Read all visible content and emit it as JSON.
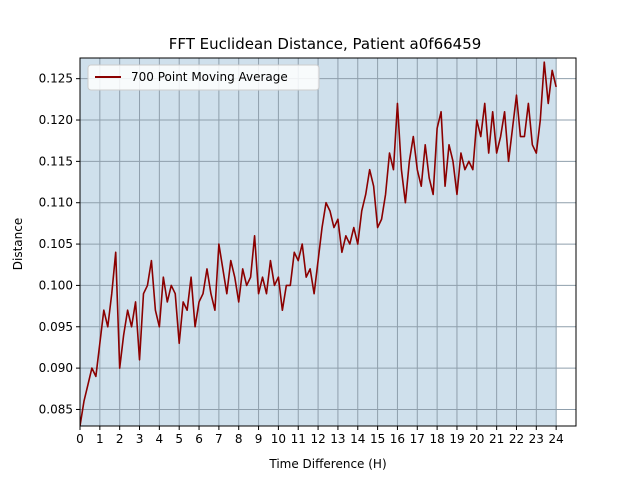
{
  "chart_data": {
    "type": "line",
    "title": "FFT Euclidean Distance, Patient a0f66459",
    "xlabel": "Time Difference (H)",
    "ylabel": "Distance",
    "xlim": [
      0,
      25
    ],
    "ylim": [
      0.083,
      0.1275
    ],
    "shaded_region": [
      0,
      24
    ],
    "x_ticks": [
      0,
      1,
      2,
      3,
      4,
      5,
      6,
      7,
      8,
      9,
      10,
      11,
      12,
      13,
      14,
      15,
      16,
      17,
      18,
      19,
      20,
      21,
      22,
      23,
      24
    ],
    "x_tick_labels": [
      "0",
      "1",
      "2",
      "3",
      "4",
      "5",
      "6",
      "7",
      "8",
      "9",
      "10",
      "11",
      "12",
      "13",
      "14",
      "15",
      "16",
      "17",
      "18",
      "19",
      "20",
      "21",
      "22",
      "23",
      "24"
    ],
    "y_ticks": [
      0.085,
      0.09,
      0.095,
      0.1,
      0.105,
      0.11,
      0.115,
      0.12,
      0.125
    ],
    "y_tick_labels": [
      "0.085",
      "0.090",
      "0.095",
      "0.100",
      "0.105",
      "0.110",
      "0.115",
      "0.120",
      "0.125"
    ],
    "grid": true,
    "legend_position": "top-left",
    "colors": {
      "line": "#8b0000",
      "fill": "#cfe0ec",
      "grid": "#8f9fac"
    },
    "series": [
      {
        "name": "700 Point Moving Average",
        "x": [
          0,
          0.2,
          0.4,
          0.6,
          0.8,
          1.0,
          1.2,
          1.4,
          1.6,
          1.8,
          2.0,
          2.2,
          2.4,
          2.6,
          2.8,
          3.0,
          3.2,
          3.4,
          3.6,
          3.8,
          4.0,
          4.2,
          4.4,
          4.6,
          4.8,
          5.0,
          5.2,
          5.4,
          5.6,
          5.8,
          6.0,
          6.2,
          6.4,
          6.6,
          6.8,
          7.0,
          7.2,
          7.4,
          7.6,
          7.8,
          8.0,
          8.2,
          8.4,
          8.6,
          8.8,
          9.0,
          9.2,
          9.4,
          9.6,
          9.8,
          10.0,
          10.2,
          10.4,
          10.6,
          10.8,
          11.0,
          11.2,
          11.4,
          11.6,
          11.8,
          12.0,
          12.2,
          12.4,
          12.6,
          12.8,
          13.0,
          13.2,
          13.4,
          13.6,
          13.8,
          14.0,
          14.2,
          14.4,
          14.6,
          14.8,
          15.0,
          15.2,
          15.4,
          15.6,
          15.8,
          16.0,
          16.2,
          16.4,
          16.6,
          16.8,
          17.0,
          17.2,
          17.4,
          17.6,
          17.8,
          18.0,
          18.2,
          18.4,
          18.6,
          18.8,
          19.0,
          19.2,
          19.4,
          19.6,
          19.8,
          20.0,
          20.2,
          20.4,
          20.6,
          20.8,
          21.0,
          21.2,
          21.4,
          21.6,
          21.8,
          22.0,
          22.2,
          22.4,
          22.6,
          22.8,
          23.0,
          23.2,
          23.4,
          23.6,
          23.8,
          24.0
        ],
        "y": [
          0.083,
          0.086,
          0.088,
          0.09,
          0.089,
          0.093,
          0.097,
          0.095,
          0.099,
          0.104,
          0.09,
          0.094,
          0.097,
          0.095,
          0.098,
          0.091,
          0.099,
          0.1,
          0.103,
          0.097,
          0.095,
          0.101,
          0.098,
          0.1,
          0.099,
          0.093,
          0.098,
          0.097,
          0.101,
          0.095,
          0.098,
          0.099,
          0.102,
          0.099,
          0.097,
          0.105,
          0.102,
          0.099,
          0.103,
          0.101,
          0.098,
          0.102,
          0.1,
          0.101,
          0.106,
          0.099,
          0.101,
          0.099,
          0.103,
          0.1,
          0.101,
          0.097,
          0.1,
          0.1,
          0.104,
          0.103,
          0.105,
          0.101,
          0.102,
          0.099,
          0.103,
          0.107,
          0.11,
          0.109,
          0.107,
          0.108,
          0.104,
          0.106,
          0.105,
          0.107,
          0.105,
          0.109,
          0.111,
          0.114,
          0.112,
          0.107,
          0.108,
          0.111,
          0.116,
          0.114,
          0.122,
          0.114,
          0.11,
          0.115,
          0.118,
          0.114,
          0.112,
          0.117,
          0.113,
          0.111,
          0.119,
          0.121,
          0.112,
          0.117,
          0.115,
          0.111,
          0.116,
          0.114,
          0.115,
          0.114,
          0.12,
          0.118,
          0.122,
          0.116,
          0.121,
          0.116,
          0.118,
          0.121,
          0.115,
          0.119,
          0.123,
          0.118,
          0.118,
          0.122,
          0.117,
          0.116,
          0.12,
          0.127,
          0.122,
          0.126,
          0.124
        ]
      }
    ]
  }
}
